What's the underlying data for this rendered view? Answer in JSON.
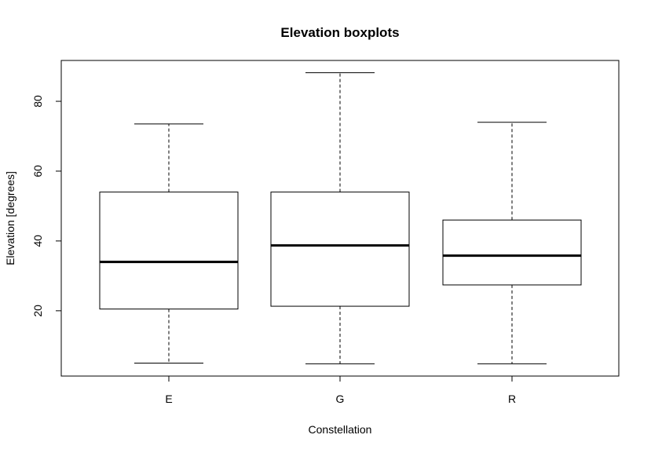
{
  "chart_data": {
    "type": "boxplot",
    "title": "Elevation boxplots",
    "xlabel": "Constellation",
    "ylabel": "Elevation [degrees]",
    "categories": [
      "E",
      "G",
      "R"
    ],
    "boxes": [
      {
        "category": "E",
        "min": 5,
        "q1": 20.5,
        "median": 34,
        "q3": 54,
        "max": 73.5
      },
      {
        "category": "G",
        "min": 4.8,
        "q1": 21.3,
        "median": 38.7,
        "q3": 54,
        "max": 88.2
      },
      {
        "category": "R",
        "min": 4.8,
        "q1": 27.4,
        "median": 35.8,
        "q3": 46,
        "max": 74
      }
    ],
    "y_ticks": [
      20,
      40,
      60,
      80
    ],
    "ylim": [
      1.3,
      91.7
    ],
    "grid": false,
    "legend": "none"
  }
}
